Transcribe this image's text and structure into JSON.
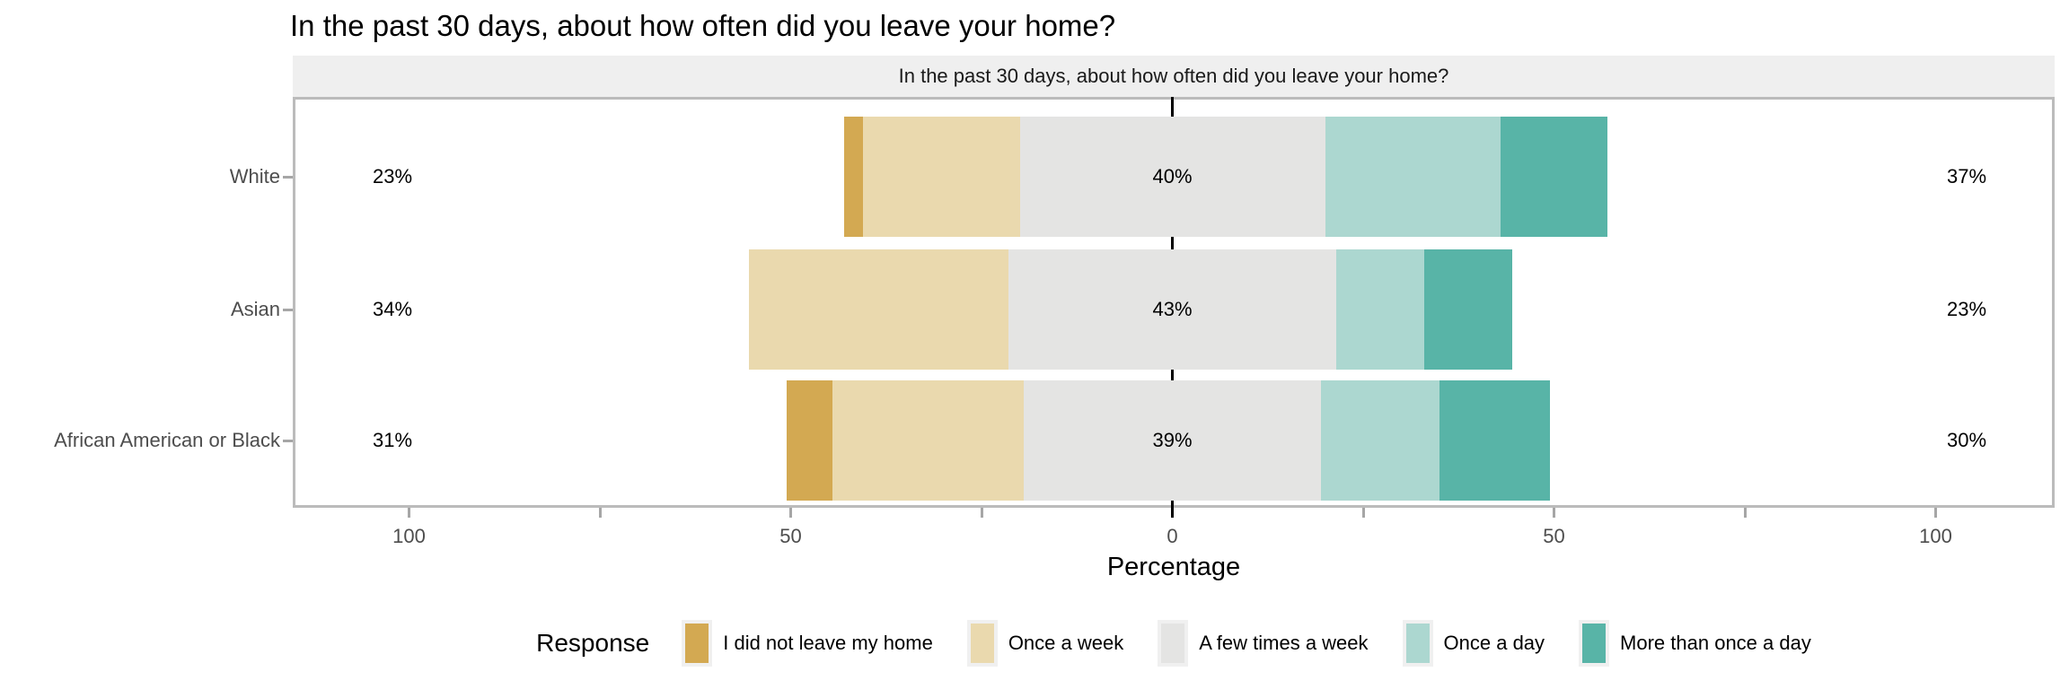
{
  "page": {
    "title": "In the past 30 days, about how often did you leave your home?"
  },
  "chart_data": {
    "type": "bar",
    "variant": "diverging-stacked-horizontal",
    "title": "In the past 30 days, about how often did you leave your home?",
    "facet_label": "In the past 30 days, about how often did you leave your home?",
    "xlabel": "Percentage",
    "ylabel": "",
    "xlim": [
      -115,
      115
    ],
    "grid": "off",
    "zero_line_color": "#000000",
    "panel_border_color": "#BBBBBB",
    "strip_background": "#EFEFEF",
    "categories": [
      "White",
      "Asian",
      "African American or Black"
    ],
    "series": [
      {
        "name": "I did not leave my home",
        "color": "#D3A952",
        "values": [
          2.5,
          0,
          6
        ]
      },
      {
        "name": "Once a week",
        "color": "#EAD9AE",
        "values": [
          20.5,
          34,
          25
        ]
      },
      {
        "name": "A few times a week",
        "color": "#E4E4E3",
        "values": [
          40,
          43,
          39
        ]
      },
      {
        "name": "Once a day",
        "color": "#ACD7D0",
        "values": [
          23,
          11.5,
          15.5
        ]
      },
      {
        "name": "More than once a day",
        "color": "#58B4A7",
        "values": [
          14,
          11.5,
          14.5
        ]
      }
    ],
    "bar_labels": [
      {
        "category": "White",
        "left": "23%",
        "center": "40%",
        "right": "37%"
      },
      {
        "category": "Asian",
        "left": "34%",
        "center": "43%",
        "right": "23%"
      },
      {
        "category": "African American or Black",
        "left": "31%",
        "center": "39%",
        "right": "30%"
      }
    ],
    "x_axis": {
      "ticks": [
        {
          "value": -100,
          "label": "100"
        },
        {
          "value": -75,
          "label": ""
        },
        {
          "value": -50,
          "label": "50"
        },
        {
          "value": -25,
          "label": ""
        },
        {
          "value": 0,
          "label": "0"
        },
        {
          "value": 25,
          "label": ""
        },
        {
          "value": 50,
          "label": "50"
        },
        {
          "value": 75,
          "label": ""
        },
        {
          "value": 100,
          "label": "100"
        }
      ]
    },
    "legend": {
      "title": "Response",
      "position": "bottom",
      "items": [
        {
          "label": "I did not leave my home",
          "color": "#D3A952"
        },
        {
          "label": "Once a week",
          "color": "#EAD9AE"
        },
        {
          "label": "A few times a week",
          "color": "#E4E4E3"
        },
        {
          "label": "Once a day",
          "color": "#ACD7D0"
        },
        {
          "label": "More than once a day",
          "color": "#58B4A7"
        }
      ]
    }
  }
}
